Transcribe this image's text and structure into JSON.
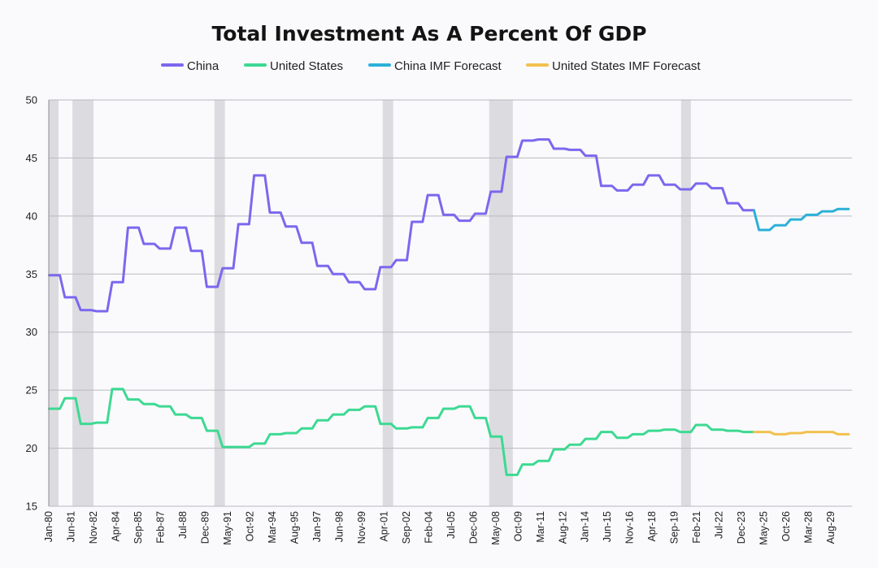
{
  "chart_data": {
    "type": "line",
    "title": "Total Investment As A Percent Of GDP",
    "xlabel": "",
    "ylabel": "",
    "ylim": [
      15,
      50
    ],
    "yticks": [
      15,
      20,
      25,
      30,
      35,
      40,
      45,
      50
    ],
    "xlim": [
      "1980-01",
      "2030-12"
    ],
    "x_tick_labels": [
      "Jan-80",
      "Jun-81",
      "Nov-82",
      "Apr-84",
      "Sep-85",
      "Feb-87",
      "Jul-88",
      "Dec-89",
      "May-91",
      "Oct-92",
      "Mar-94",
      "Aug-95",
      "Jan-97",
      "Jun-98",
      "Nov-99",
      "Apr-01",
      "Sep-02",
      "Feb-04",
      "Jul-05",
      "Dec-06",
      "May-08",
      "Oct-09",
      "Mar-11",
      "Aug-12",
      "Jan-14",
      "Jun-15",
      "Nov-16",
      "Apr-18",
      "Sep-19",
      "Feb-21",
      "Jul-22",
      "Dec-23",
      "May-25",
      "Oct-26",
      "Mar-28",
      "Aug-29"
    ],
    "grid": true,
    "legend_position": "top-center",
    "recessions": [
      [
        "1980-01",
        "1980-07"
      ],
      [
        "1981-07",
        "1982-11"
      ],
      [
        "1990-07",
        "1991-03"
      ],
      [
        "2001-03",
        "2001-11"
      ],
      [
        "2007-12",
        "2009-06"
      ],
      [
        "2020-02",
        "2020-04"
      ]
    ],
    "series": [
      {
        "name": "China",
        "color": "#7b68ee",
        "x": [
          1980,
          1981,
          1982,
          1983,
          1984,
          1985,
          1986,
          1987,
          1988,
          1989,
          1990,
          1991,
          1992,
          1993,
          1994,
          1995,
          1996,
          1997,
          1998,
          1999,
          2000,
          2001,
          2002,
          2003,
          2004,
          2005,
          2006,
          2007,
          2008,
          2009,
          2010,
          2011,
          2012,
          2013,
          2014,
          2015,
          2016,
          2017,
          2018,
          2019,
          2020,
          2021,
          2022,
          2023,
          2024
        ],
        "values": [
          34.9,
          33.0,
          31.9,
          31.8,
          34.3,
          39.0,
          37.6,
          37.2,
          39.0,
          37.0,
          33.9,
          35.5,
          39.3,
          43.5,
          40.3,
          39.1,
          37.7,
          35.7,
          35.0,
          34.3,
          33.7,
          35.6,
          36.2,
          39.5,
          41.8,
          40.1,
          39.6,
          40.2,
          42.1,
          45.1,
          46.5,
          46.6,
          45.8,
          45.7,
          45.2,
          42.6,
          42.2,
          42.7,
          43.5,
          42.7,
          42.3,
          42.8,
          42.4,
          41.1,
          40.5
        ]
      },
      {
        "name": "United States",
        "color": "#3dd992",
        "x": [
          1980,
          1981,
          1982,
          1983,
          1984,
          1985,
          1986,
          1987,
          1988,
          1989,
          1990,
          1991,
          1992,
          1993,
          1994,
          1995,
          1996,
          1997,
          1998,
          1999,
          2000,
          2001,
          2002,
          2003,
          2004,
          2005,
          2006,
          2007,
          2008,
          2009,
          2010,
          2011,
          2012,
          2013,
          2014,
          2015,
          2016,
          2017,
          2018,
          2019,
          2020,
          2021,
          2022,
          2023,
          2024
        ],
        "values": [
          23.4,
          24.3,
          22.1,
          22.2,
          25.1,
          24.2,
          23.8,
          23.6,
          22.9,
          22.6,
          21.5,
          20.1,
          20.1,
          20.4,
          21.2,
          21.3,
          21.7,
          22.4,
          22.9,
          23.3,
          23.6,
          22.1,
          21.7,
          21.8,
          22.6,
          23.4,
          23.6,
          22.6,
          21.0,
          17.7,
          18.6,
          18.9,
          19.9,
          20.3,
          20.8,
          21.4,
          20.9,
          21.2,
          21.5,
          21.6,
          21.4,
          22.0,
          21.6,
          21.5,
          21.4
        ]
      },
      {
        "name": "China IMF Forecast",
        "color": "#2cb0d8",
        "x": [
          2025,
          2026,
          2027,
          2028,
          2029,
          2030
        ],
        "values": [
          38.8,
          39.2,
          39.7,
          40.1,
          40.4,
          40.6
        ]
      },
      {
        "name": "United States IMF Forecast",
        "color": "#f2c14e",
        "x": [
          2025,
          2026,
          2027,
          2028,
          2029,
          2030
        ],
        "values": [
          21.4,
          21.2,
          21.3,
          21.4,
          21.4,
          21.2
        ]
      }
    ]
  }
}
